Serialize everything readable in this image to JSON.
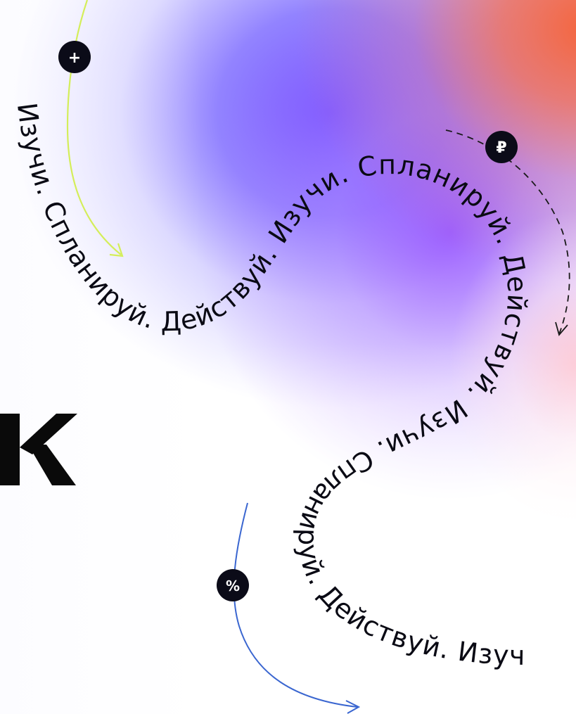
{
  "poster": {
    "flow_text": "Изучи. Спланируй. Действуй. Изучи. Спланируй. Действуй. Изучи. Спланируй. Действуй. Изучи.",
    "colors": {
      "text": "#0a0a14",
      "badge": "#0b0b18",
      "green_arrow": "#d4ee5a",
      "blue_arrow": "#3a66d0",
      "dashed_arrow": "#1a1a1a",
      "gradient_blue": "#7052ff",
      "gradient_orange": "#f4643c"
    }
  },
  "badges": {
    "plus": {
      "label": "+",
      "icon": "plus-icon"
    },
    "ruble": {
      "label": "₽",
      "icon": "ruble-icon"
    },
    "percent": {
      "label": "%",
      "icon": "percent-icon"
    }
  },
  "logo": {
    "icon": "brand-k-logo",
    "letter": "K"
  }
}
